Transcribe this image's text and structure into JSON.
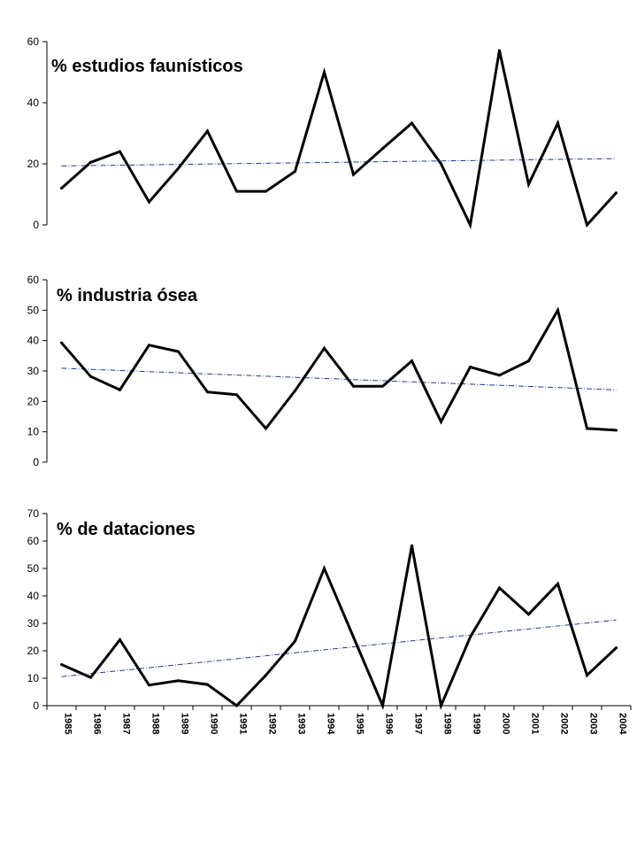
{
  "colors": {
    "series": "#000000",
    "trend": "#1f3a93",
    "axis": "#000000"
  },
  "chart_data": [
    {
      "type": "line",
      "title": "% estudios faunísticos",
      "x": [
        1985,
        1986,
        1987,
        1988,
        1989,
        1990,
        1991,
        1992,
        1993,
        1994,
        1995,
        1996,
        1997,
        1998,
        1999,
        2000,
        2001,
        2002,
        2003,
        2004
      ],
      "values": [
        12,
        20.5,
        24,
        7.5,
        18.5,
        30.7,
        11,
        11,
        17.5,
        50,
        16.5,
        25,
        33.3,
        20,
        0,
        57.1,
        13.3,
        33.3,
        0,
        10.5
      ],
      "trendline": [
        19.3,
        21.7
      ],
      "ylim": [
        0,
        60
      ],
      "yticks": [
        0,
        20,
        40,
        60
      ],
      "xlabel": "",
      "ylabel": ""
    },
    {
      "type": "line",
      "title": "% industria ósea",
      "x": [
        1985,
        1986,
        1987,
        1988,
        1989,
        1990,
        1991,
        1992,
        1993,
        1994,
        1995,
        1996,
        1997,
        1998,
        1999,
        2000,
        2001,
        2002,
        2003,
        2004
      ],
      "values": [
        39.3,
        28.2,
        23.8,
        38.5,
        36.4,
        23.1,
        22.2,
        11.1,
        23.5,
        37.5,
        25,
        25,
        33.3,
        13.3,
        31.3,
        28.6,
        33.3,
        50,
        11.1,
        10.5
      ],
      "trendline": [
        30.9,
        23.8
      ],
      "ylim": [
        0,
        60
      ],
      "yticks": [
        0,
        10,
        20,
        30,
        40,
        50,
        60
      ],
      "xlabel": "",
      "ylabel": ""
    },
    {
      "type": "line",
      "title": "% de dataciones",
      "x": [
        1985,
        1986,
        1987,
        1988,
        1989,
        1990,
        1991,
        1992,
        1993,
        1994,
        1995,
        1996,
        1997,
        1998,
        1999,
        2000,
        2001,
        2002,
        2003,
        2004
      ],
      "values": [
        15,
        10.3,
        24,
        7.5,
        9.1,
        7.7,
        0,
        11.1,
        23.5,
        50,
        25,
        0,
        58.3,
        0,
        25,
        42.9,
        33.3,
        44.4,
        11.1,
        21.1
      ],
      "trendline": [
        10.6,
        31.2
      ],
      "ylim": [
        0,
        70
      ],
      "yticks": [
        0,
        10,
        20,
        30,
        40,
        50,
        60,
        70
      ],
      "xlabel": "",
      "ylabel": ""
    }
  ]
}
